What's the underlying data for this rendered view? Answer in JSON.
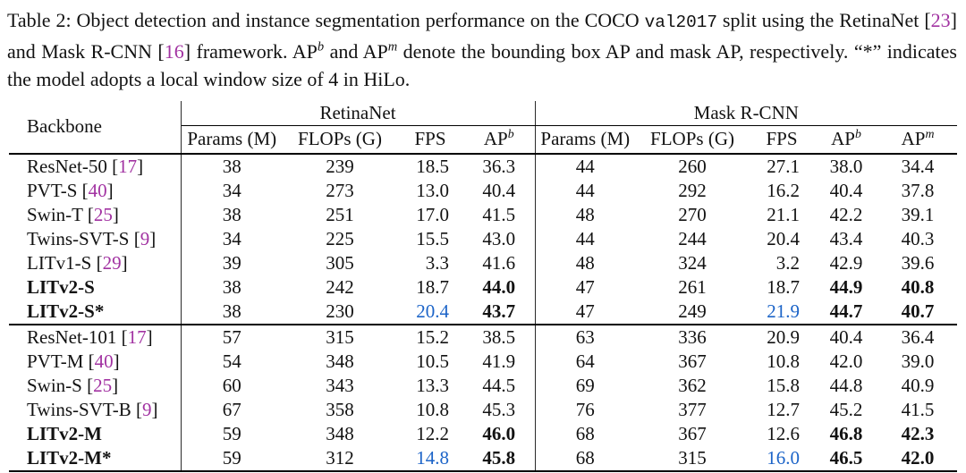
{
  "colors": {
    "citation_magenta": "#A233A2",
    "fps_blue": "#1C64C8",
    "text": "#121212",
    "rule": "#000000"
  },
  "caption": {
    "segments": [
      {
        "t": "Table 2: Object detection and instance segmentation performance on the COCO "
      },
      {
        "t": "val2017",
        "style": "mono"
      },
      {
        "t": " split using the RetinaNet ["
      },
      {
        "t": "23",
        "style": "cite"
      },
      {
        "t": "] and Mask R-CNN ["
      },
      {
        "t": "16",
        "style": "cite"
      },
      {
        "t": "] framework. AP"
      },
      {
        "t": "b",
        "style": "sup"
      },
      {
        "t": " and AP"
      },
      {
        "t": "m",
        "style": "sup"
      },
      {
        "t": " denote the bounding box AP and mask AP, respectively. “*” indicates the model adopts a local window size of 4 in HiLo."
      }
    ]
  },
  "table": {
    "backbone_header": "Backbone",
    "cite_brackets": {
      "open": " [",
      "close": "]"
    },
    "groups": [
      {
        "label": "RetinaNet",
        "columns": [
          {
            "base": "Params (M)"
          },
          {
            "base": "FLOPs (G)"
          },
          {
            "base": "FPS"
          },
          {
            "base": "AP",
            "sup": "b"
          }
        ]
      },
      {
        "label": "Mask R-CNN",
        "columns": [
          {
            "base": "Params (M)"
          },
          {
            "base": "FLOPs (G)"
          },
          {
            "base": "FPS"
          },
          {
            "base": "AP",
            "sup": "b"
          },
          {
            "base": "AP",
            "sup": "m"
          }
        ]
      }
    ],
    "blocks": [
      {
        "rows": [
          {
            "name": "ResNet-50",
            "cite": "17",
            "r": [
              "38",
              "239",
              "18.5",
              "36.3"
            ],
            "m": [
              "44",
              "260",
              "27.1",
              "38.0",
              "34.4"
            ]
          },
          {
            "name": "PVT-S",
            "cite": "40",
            "r": [
              "34",
              "273",
              "13.0",
              "40.4"
            ],
            "m": [
              "44",
              "292",
              "16.2",
              "40.4",
              "37.8"
            ]
          },
          {
            "name": "Swin-T",
            "cite": "25",
            "r": [
              "38",
              "251",
              "17.0",
              "41.5"
            ],
            "m": [
              "48",
              "270",
              "21.1",
              "42.2",
              "39.1"
            ]
          },
          {
            "name": "Twins-SVT-S",
            "cite": "9",
            "r": [
              "34",
              "225",
              "15.5",
              "43.0"
            ],
            "m": [
              "44",
              "244",
              "20.4",
              "43.4",
              "40.3"
            ]
          },
          {
            "name": "LITv1-S",
            "cite": "29",
            "r": [
              "39",
              "305",
              "3.3",
              "41.6"
            ],
            "m": [
              "48",
              "324",
              "3.2",
              "42.9",
              "39.6"
            ]
          },
          {
            "name": "LITv2-S",
            "highlight": true,
            "r": [
              "38",
              "242",
              "18.7",
              "44.0"
            ],
            "m": [
              "47",
              "261",
              "18.7",
              "44.9",
              "40.8"
            ]
          },
          {
            "name": "LITv2-S*",
            "highlight": true,
            "star": true,
            "r": [
              "38",
              "230",
              "20.4",
              "43.7"
            ],
            "m": [
              "47",
              "249",
              "21.9",
              "44.7",
              "40.7"
            ]
          }
        ]
      },
      {
        "rows": [
          {
            "name": "ResNet-101",
            "cite": "17",
            "r": [
              "57",
              "315",
              "15.2",
              "38.5"
            ],
            "m": [
              "63",
              "336",
              "20.9",
              "40.4",
              "36.4"
            ]
          },
          {
            "name": "PVT-M",
            "cite": "40",
            "r": [
              "54",
              "348",
              "10.5",
              "41.9"
            ],
            "m": [
              "64",
              "367",
              "10.8",
              "42.0",
              "39.0"
            ]
          },
          {
            "name": "Swin-S",
            "cite": "25",
            "r": [
              "60",
              "343",
              "13.3",
              "44.5"
            ],
            "m": [
              "69",
              "362",
              "15.8",
              "44.8",
              "40.9"
            ]
          },
          {
            "name": "Twins-SVT-B",
            "cite": "9",
            "r": [
              "67",
              "358",
              "10.8",
              "45.3"
            ],
            "m": [
              "76",
              "377",
              "12.7",
              "45.2",
              "41.5"
            ]
          },
          {
            "name": "LITv2-M",
            "highlight": true,
            "r": [
              "59",
              "348",
              "12.2",
              "46.0"
            ],
            "m": [
              "68",
              "367",
              "12.6",
              "46.8",
              "42.3"
            ]
          },
          {
            "name": "LITv2-M*",
            "highlight": true,
            "star": true,
            "r": [
              "59",
              "312",
              "14.8",
              "45.8"
            ],
            "m": [
              "68",
              "315",
              "16.0",
              "46.5",
              "42.0"
            ]
          }
        ]
      }
    ]
  }
}
